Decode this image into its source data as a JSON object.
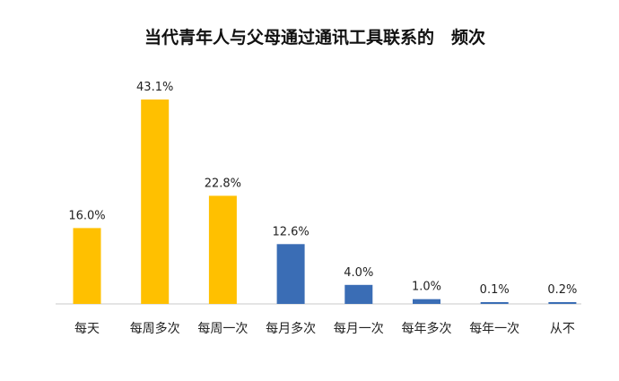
{
  "chart_data": {
    "type": "bar",
    "title": "当代青年人与父母通过通讯工具联系的　频次",
    "categories": [
      "每天",
      "每周多次",
      "每周一次",
      "每月多次",
      "每月一次",
      "每年多次",
      "每年一次",
      "从不"
    ],
    "values": [
      16.0,
      43.1,
      22.8,
      12.6,
      4.0,
      1.0,
      0.1,
      0.2
    ],
    "value_labels": [
      "16.0%",
      "43.1%",
      "22.8%",
      "12.6%",
      "4.0%",
      "1.0%",
      "0.1%",
      "0.2%"
    ],
    "bar_colors": [
      "#FFC000",
      "#FFC000",
      "#FFC000",
      "#3A6DB5",
      "#3A6DB5",
      "#3A6DB5",
      "#3A6DB5",
      "#3A6DB5"
    ],
    "xlabel": "",
    "ylabel": "",
    "ylim": [
      0,
      43.1
    ],
    "grid": false,
    "legend": "none"
  }
}
